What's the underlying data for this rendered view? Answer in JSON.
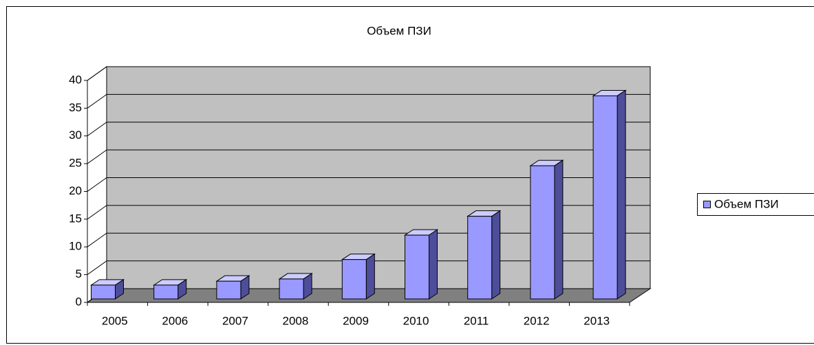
{
  "chart_data": {
    "type": "bar3d",
    "title": "Объем ПЗИ",
    "categories": [
      "2005",
      "2006",
      "2007",
      "2008",
      "2009",
      "2010",
      "2011",
      "2012",
      "2013"
    ],
    "series": [
      {
        "name": "Объем ПЗИ",
        "color": "#9999ff",
        "values": [
          2.5,
          2.5,
          3.2,
          3.6,
          7.1,
          11.5,
          14.9,
          24,
          36.6
        ]
      }
    ],
    "ylim": [
      0,
      40
    ],
    "yticks": [
      0,
      5,
      10,
      15,
      20,
      25,
      30,
      35,
      40
    ],
    "grid": true,
    "legend": "right"
  }
}
